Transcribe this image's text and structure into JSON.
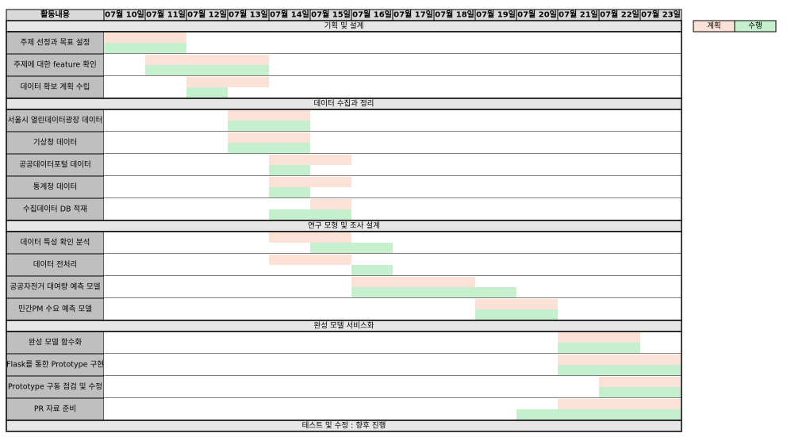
{
  "colors": {
    "plan": "#fce2d6",
    "done": "#c6efce",
    "label_bg": "#bfbfbf",
    "section_bg": "#e6e6e6",
    "header_bg": "#d9d9d9",
    "grid": "#000000"
  },
  "header": {
    "corner": "활동내용",
    "dates": [
      "07월 10일",
      "07월 11일",
      "07월 12일",
      "07월 13일",
      "07월 14일",
      "07월 15일",
      "07월 16일",
      "07월 17일",
      "07월 18일",
      "07월 19일",
      "07월 20일",
      "07월 21일",
      "07월 22일",
      "07월 23일"
    ]
  },
  "legend": {
    "plan": "계획",
    "done": "수행"
  },
  "sections": [
    {
      "title": "기획 및 설계",
      "tasks": [
        {
          "label": "주제 선정과 목표 설정",
          "plan": [
            0,
            2
          ],
          "done": [
            0,
            2
          ]
        },
        {
          "label": "주제에 대한 feature 확인",
          "plan": [
            1,
            4
          ],
          "done": [
            1,
            4
          ]
        },
        {
          "label": "데이터 확보 계획 수립",
          "plan": [
            2,
            4
          ],
          "done": [
            2,
            3
          ]
        }
      ]
    },
    {
      "title": "데이터 수집과 정리",
      "tasks": [
        {
          "label": "서울시 열린데이터광장 데이터",
          "plan": [
            3,
            5
          ],
          "done": [
            3,
            5
          ]
        },
        {
          "label": "기상청 데이터",
          "plan": [
            3,
            5
          ],
          "done": [
            3,
            5
          ]
        },
        {
          "label": "공공데이터포털 데이터",
          "plan": [
            4,
            6
          ],
          "done": [
            4,
            5
          ]
        },
        {
          "label": "통계청 데이터",
          "plan": [
            4,
            6
          ],
          "done": [
            4,
            5
          ]
        },
        {
          "label": "수집데이터 DB 적재",
          "plan": [
            5,
            6
          ],
          "done": [
            4,
            6
          ]
        }
      ]
    },
    {
      "title": "연구 모형 및 조사 설계",
      "tasks": [
        {
          "label": "데이터 특성 확인 분석",
          "plan": [
            4,
            6
          ],
          "done": [
            5,
            7
          ]
        },
        {
          "label": "데이터 전처리",
          "plan": [
            4,
            6
          ],
          "done": [
            6,
            7
          ]
        },
        {
          "label": "공공자전거 대여량 예측 모델",
          "plan": [
            6,
            9
          ],
          "done": [
            6,
            10
          ]
        },
        {
          "label": "민간PM 수요 예측 모델",
          "plan": [
            9,
            11
          ],
          "done": [
            9,
            11
          ]
        }
      ]
    },
    {
      "title": "완성 모델 서비스화",
      "tasks": [
        {
          "label": "완성 모델 함수화",
          "plan": [
            11,
            13
          ],
          "done": [
            11,
            13
          ]
        },
        {
          "label": "Flask를 통한 Prototype 구현",
          "plan": [
            11,
            14
          ],
          "done": [
            11,
            14
          ]
        },
        {
          "label": "Prototype 구동 점검 및 수정",
          "plan": [
            12,
            14
          ],
          "done": [
            12,
            14
          ]
        },
        {
          "label": "PR 자료 준비",
          "plan": [
            11,
            14
          ],
          "done": [
            10,
            14
          ]
        }
      ]
    },
    {
      "title": "테스트 및 수정 : 향후 진행",
      "tasks": []
    }
  ]
}
